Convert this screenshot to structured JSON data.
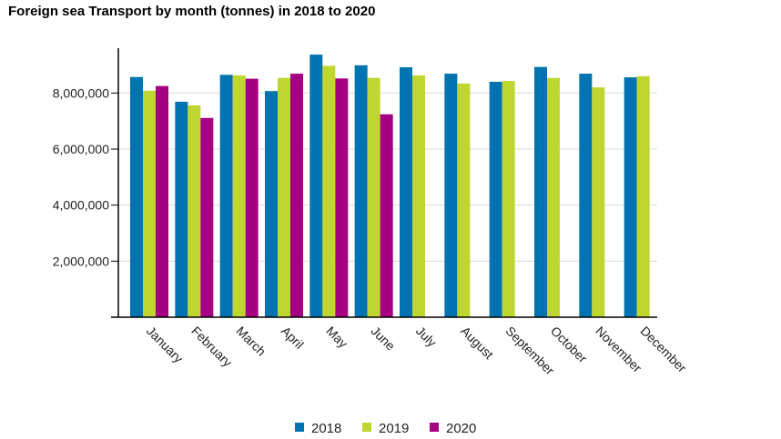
{
  "chart_data": {
    "type": "bar",
    "title": "Foreign sea Transport by month (tonnes) in 2018 to 2020",
    "xlabel": "",
    "ylabel": "",
    "ylim": [
      0,
      9600000
    ],
    "yticks": [
      2000000,
      4000000,
      6000000,
      8000000
    ],
    "ytick_labels": [
      "2,000,000",
      "4,000,000",
      "6,000,000",
      "8,000,000"
    ],
    "grid": true,
    "legend": "bottom",
    "categories": [
      "January",
      "February",
      "March",
      "April",
      "May",
      "June",
      "July",
      "August",
      "September",
      "October",
      "November",
      "December"
    ],
    "series": [
      {
        "name": "2018",
        "color": "#0073b0",
        "values": [
          8570000,
          7690000,
          8650000,
          8070000,
          9370000,
          8990000,
          8920000,
          8690000,
          8400000,
          8930000,
          8690000,
          8560000
        ]
      },
      {
        "name": "2019",
        "color": "#c0d630",
        "values": [
          8080000,
          7560000,
          8630000,
          8540000,
          8970000,
          8540000,
          8630000,
          8340000,
          8430000,
          8540000,
          8200000,
          8600000
        ]
      },
      {
        "name": "2020",
        "color": "#a50082",
        "values": [
          8250000,
          7110000,
          8510000,
          8690000,
          8520000,
          7240000,
          null,
          null,
          null,
          null,
          null,
          null
        ]
      }
    ]
  }
}
